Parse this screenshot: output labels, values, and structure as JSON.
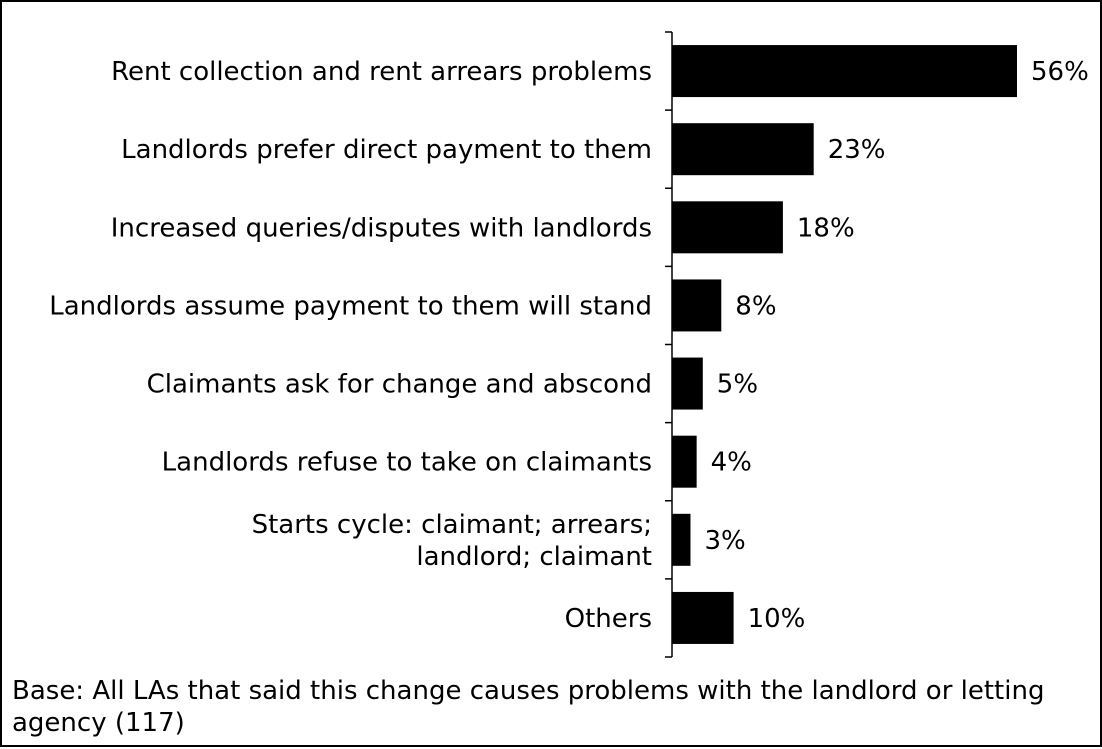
{
  "chart_data": {
    "type": "bar",
    "orientation": "horizontal",
    "categories": [
      [
        "Rent collection and rent arrears problems"
      ],
      [
        "Landlords prefer direct payment to them"
      ],
      [
        "Increased queries/disputes with landlords"
      ],
      [
        "Landlords assume payment to them will stand"
      ],
      [
        "Claimants ask for change and abscond"
      ],
      [
        "Landlords refuse to take on claimants"
      ],
      [
        "Starts cycle: claimant; arrears;",
        "landlord; claimant"
      ],
      [
        "Others"
      ]
    ],
    "values": [
      56,
      23,
      18,
      8,
      5,
      4,
      3,
      10
    ],
    "value_labels": [
      "56%",
      "23%",
      "18%",
      "8%",
      "5%",
      "4%",
      "3%",
      "10%"
    ],
    "unit": "%",
    "xlim": [
      0,
      60
    ],
    "bar_color": "#000000",
    "grid": false,
    "legend": "none"
  },
  "footnote": "Base: All LAs that said this change causes problems with the landlord or letting agency (117)"
}
